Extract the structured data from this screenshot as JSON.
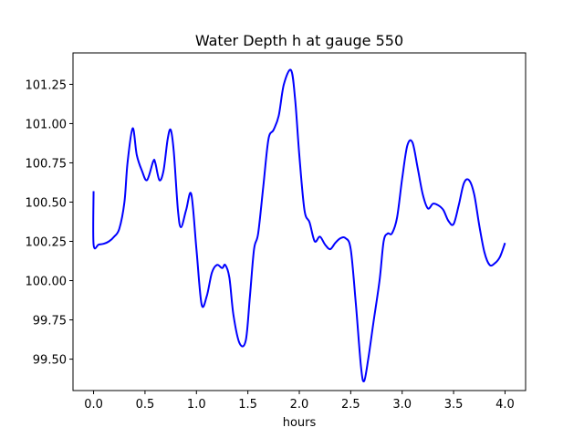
{
  "chart_data": {
    "type": "line",
    "title": "Water Depth h at gauge 550",
    "xlabel": "hours",
    "ylabel": "",
    "xlim": [
      -0.2,
      4.2
    ],
    "ylim": [
      99.3,
      101.45
    ],
    "xticks": [
      "0.0",
      "0.5",
      "1.0",
      "1.5",
      "2.0",
      "2.5",
      "3.0",
      "3.5",
      "4.0"
    ],
    "yticks": [
      "99.50",
      "99.75",
      "100.00",
      "100.25",
      "100.50",
      "100.75",
      "101.00",
      "101.25"
    ],
    "grid": false,
    "legend": "none",
    "series": [
      {
        "color": "#0000ff",
        "x": [
          0.0,
          0.0,
          0.05,
          0.1,
          0.15,
          0.2,
          0.25,
          0.3,
          0.33,
          0.38,
          0.42,
          0.47,
          0.52,
          0.58,
          0.6,
          0.64,
          0.68,
          0.72,
          0.75,
          0.78,
          0.82,
          0.85,
          0.9,
          0.95,
          1.0,
          1.05,
          1.1,
          1.15,
          1.2,
          1.25,
          1.28,
          1.32,
          1.36,
          1.42,
          1.48,
          1.52,
          1.56,
          1.6,
          1.65,
          1.7,
          1.75,
          1.8,
          1.85,
          1.92,
          1.96,
          2.0,
          2.05,
          2.1,
          2.15,
          2.2,
          2.25,
          2.3,
          2.35,
          2.4,
          2.45,
          2.5,
          2.55,
          2.6,
          2.63,
          2.67,
          2.72,
          2.78,
          2.82,
          2.86,
          2.9,
          2.95,
          3.0,
          3.05,
          3.1,
          3.15,
          3.2,
          3.25,
          3.3,
          3.35,
          3.4,
          3.45,
          3.5,
          3.55,
          3.6,
          3.65,
          3.7,
          3.75,
          3.8,
          3.85,
          3.9,
          3.95,
          4.0
        ],
        "y": [
          100.57,
          100.23,
          100.23,
          100.235,
          100.25,
          100.28,
          100.33,
          100.5,
          100.75,
          100.97,
          100.8,
          100.7,
          100.64,
          100.76,
          100.75,
          100.64,
          100.7,
          100.9,
          100.96,
          100.82,
          100.45,
          100.34,
          100.45,
          100.55,
          100.2,
          99.85,
          99.9,
          100.05,
          100.1,
          100.08,
          100.1,
          100.02,
          99.78,
          99.6,
          99.62,
          99.9,
          100.2,
          100.3,
          100.6,
          100.9,
          100.96,
          101.05,
          101.25,
          101.34,
          101.15,
          100.8,
          100.45,
          100.37,
          100.25,
          100.28,
          100.23,
          100.2,
          100.24,
          100.27,
          100.27,
          100.2,
          99.85,
          99.45,
          99.36,
          99.5,
          99.73,
          100.0,
          100.25,
          100.3,
          100.3,
          100.4,
          100.65,
          100.86,
          100.88,
          100.72,
          100.55,
          100.46,
          100.49,
          100.48,
          100.45,
          100.38,
          100.36,
          100.48,
          100.62,
          100.64,
          100.55,
          100.35,
          100.18,
          100.1,
          100.11,
          100.15,
          100.24
        ]
      }
    ]
  }
}
